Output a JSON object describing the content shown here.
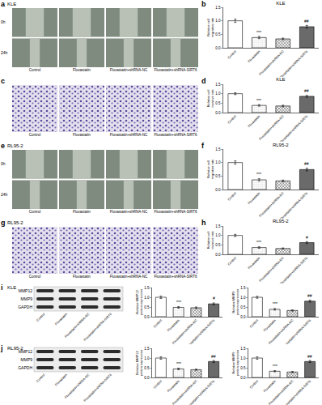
{
  "figure": {
    "panels": [
      {
        "panel_label": "a",
        "cell_line": "KLE",
        "kind": "wound_healing",
        "row_labels": [
          "0h",
          "24h"
        ],
        "column_labels": [
          "Control",
          "Fluvastatin",
          "Fluvastatin+shRNA-NC",
          "Fluvastatin+shRNA-SIRT6"
        ]
      },
      {
        "panel_label": "c",
        "kind": "transwell",
        "column_labels": [
          "Control",
          "Fluvastatin",
          "Fluvastatin+shRNA-NC",
          "Fluvastatin+shRNA-SIRT6"
        ]
      },
      {
        "panel_label": "e",
        "cell_line": "RL95-2",
        "kind": "wound_healing",
        "row_labels": [
          "0h",
          "24h"
        ],
        "column_labels": [
          "Control",
          "Fluvastatin",
          "Fluvastatin+shRNA-NC",
          "Fluvastatin+shRNA-SIRT6"
        ]
      },
      {
        "panel_label": "g",
        "cell_line": "RL95-2",
        "kind": "transwell",
        "column_labels": [
          "Control",
          "Fluvastatin",
          "Fluvastatin+shRNA-NC",
          "Fluvastatin+shRNA-SIRT6"
        ]
      },
      {
        "panel_label": "i",
        "cell_line": "KLE",
        "kind": "western_blot",
        "row_labels": [
          "MMP12",
          "MMP9",
          "GAPDH"
        ],
        "column_labels": [
          "Control",
          "Fluvastatin",
          "Fluvastatin+shRNA-NC",
          "Fluvastatin+shRNA-SIRT6"
        ]
      },
      {
        "panel_label": "j",
        "cell_line": "RL95-2",
        "kind": "western_blot",
        "row_labels": [
          "MMP12",
          "MMP9",
          "GAPDH"
        ],
        "column_labels": [
          "Control",
          "Fluvastatin",
          "Fluvastatin+shRNA-NC",
          "Fluvastatin+shRNA-SIRT6"
        ]
      }
    ]
  },
  "chart_data": [
    {
      "panel_label": "b",
      "type": "bar",
      "title": "KLE",
      "y_label": "Relative cell migration rate",
      "categories": [
        "Control",
        "Fluvastatin",
        "Fluvastatin+shRNA-NC",
        "Fluvastatin+shRNA-SIRT6"
      ],
      "values": [
        1.0,
        0.38,
        0.33,
        0.78
      ],
      "errors": [
        0.06,
        0.04,
        0.03,
        0.05
      ],
      "colors": [
        "#ffffff",
        "#e0e0e0",
        "#3a3a3a",
        "#6a6a6a"
      ],
      "significance": [
        {
          "category": "Fluvastatin",
          "text": "***"
        },
        {
          "category": "Fluvastatin+shRNA-SIRT6",
          "text": "##"
        }
      ],
      "ylim": [
        0,
        1.5
      ],
      "yticks": [
        {
          "value": 0,
          "label": "0.0"
        },
        0.5,
        {
          "value": 1,
          "label": "1.0"
        },
        1.5
      ],
      "grid": false
    },
    {
      "panel_label": "d",
      "type": "bar",
      "title": "KLE",
      "y_label": "Relative cell invasive rate",
      "categories": [
        "Control",
        "Fluvastatin",
        "Fluvastatin+shRNA-NC",
        "Fluvastatin+shRNA-SIRT6"
      ],
      "values": [
        1.0,
        0.38,
        0.35,
        0.86
      ],
      "errors": [
        0.05,
        0.04,
        0.04,
        0.05
      ],
      "colors": [
        "#ffffff",
        "#e0e0e0",
        "#3a3a3a",
        "#6a6a6a"
      ],
      "significance": [
        {
          "category": "Fluvastatin",
          "text": "***"
        },
        {
          "category": "Fluvastatin+shRNA-SIRT6",
          "text": "##"
        }
      ],
      "ylim": [
        0,
        1.5
      ],
      "yticks": [
        {
          "value": 0,
          "label": "0.0"
        },
        0.5,
        {
          "value": 1,
          "label": "1.0"
        },
        1.5
      ],
      "grid": false
    },
    {
      "panel_label": "f",
      "type": "bar",
      "title": "RL95-2",
      "y_label": "Relative cell migration rate",
      "categories": [
        "Control",
        "Fluvastatin",
        "Fluvastatin+shRNA-NC",
        "Fluvastatin+shRNA-SIRT6"
      ],
      "values": [
        1.0,
        0.36,
        0.32,
        0.74
      ],
      "errors": [
        0.06,
        0.04,
        0.03,
        0.05
      ],
      "colors": [
        "#ffffff",
        "#e0e0e0",
        "#3a3a3a",
        "#6a6a6a"
      ],
      "significance": [
        {
          "category": "Fluvastatin",
          "text": "***"
        },
        {
          "category": "Fluvastatin+shRNA-SIRT6",
          "text": "##"
        }
      ],
      "ylim": [
        0,
        1.5
      ],
      "yticks": [
        {
          "value": 0,
          "label": "0.0"
        },
        0.5,
        {
          "value": 1,
          "label": "1.0"
        },
        1.5
      ],
      "grid": false
    },
    {
      "panel_label": "h",
      "type": "bar",
      "title": "RL95-2",
      "y_label": "Relative cell invasive rate",
      "categories": [
        "Control",
        "Fluvastatin",
        "Fluvastatin+shRNA-NC",
        "Fluvastatin+shRNA-SIRT6"
      ],
      "values": [
        1.0,
        0.36,
        0.31,
        0.62
      ],
      "errors": [
        0.06,
        0.04,
        0.03,
        0.05
      ],
      "colors": [
        "#ffffff",
        "#e0e0e0",
        "#3a3a3a",
        "#6a6a6a"
      ],
      "significance": [
        {
          "category": "Fluvastatin",
          "text": "***"
        },
        {
          "category": "Fluvastatin+shRNA-SIRT6",
          "text": "#"
        }
      ],
      "ylim": [
        0,
        1.5
      ],
      "yticks": [
        {
          "value": 0,
          "label": "0.0"
        },
        0.5,
        {
          "value": 1,
          "label": "1.0"
        },
        1.5
      ],
      "grid": false
    },
    {
      "type": "bar",
      "y_label": "Relative MMP12 protein expression",
      "categories": [
        "Control",
        "Fluvastatin",
        "Fluvastatin+shRNA-NC",
        "Fluvastatin+shRNA-SIRT6"
      ],
      "values": [
        1.0,
        0.48,
        0.46,
        0.66
      ],
      "errors": [
        0.06,
        0.04,
        0.04,
        0.05
      ],
      "colors": [
        "#ffffff",
        "#e0e0e0",
        "#3a3a3a",
        "#6a6a6a"
      ],
      "significance": [
        {
          "category": "Fluvastatin",
          "text": "***"
        },
        {
          "category": "Fluvastatin+shRNA-SIRT6",
          "text": "#"
        }
      ],
      "ylim": [
        0,
        1.5
      ],
      "yticks": [
        {
          "value": 0,
          "label": "0.0"
        },
        0.5,
        {
          "value": 1,
          "label": "1.0"
        },
        1.5
      ],
      "grid": false
    },
    {
      "type": "bar",
      "y_label": "Relative MMP9 protein expression",
      "categories": [
        "Control",
        "Fluvastatin",
        "Fluvastatin+shRNA-NC",
        "Fluvastatin+shRNA-SIRT6"
      ],
      "values": [
        1.0,
        0.38,
        0.32,
        0.8
      ],
      "errors": [
        0.05,
        0.04,
        0.03,
        0.05
      ],
      "colors": [
        "#ffffff",
        "#e0e0e0",
        "#3a3a3a",
        "#6a6a6a"
      ],
      "significance": [
        {
          "category": "Fluvastatin",
          "text": "***"
        },
        {
          "category": "Fluvastatin+shRNA-SIRT6",
          "text": "##"
        }
      ],
      "ylim": [
        0,
        1.5
      ],
      "yticks": [
        {
          "value": 0,
          "label": "0.0"
        },
        0.5,
        {
          "value": 1,
          "label": "1.0"
        },
        1.5
      ],
      "grid": false
    },
    {
      "type": "bar",
      "y_label": "Relative MMP12 protein expression",
      "categories": [
        "Control",
        "Fluvastatin",
        "Fluvastatin+shRNA-NC",
        "Fluvastatin+shRNA-SIRT6"
      ],
      "values": [
        1.0,
        0.44,
        0.4,
        0.82
      ],
      "errors": [
        0.06,
        0.04,
        0.03,
        0.05
      ],
      "colors": [
        "#ffffff",
        "#e0e0e0",
        "#3a3a3a",
        "#6a6a6a"
      ],
      "significance": [
        {
          "category": "Fluvastatin",
          "text": "***"
        },
        {
          "category": "Fluvastatin+shRNA-SIRT6",
          "text": "##"
        }
      ],
      "ylim": [
        0,
        1.5
      ],
      "yticks": [
        {
          "value": 0,
          "label": "0.0"
        },
        0.5,
        {
          "value": 1,
          "label": "1.0"
        },
        1.5
      ],
      "grid": false
    },
    {
      "type": "bar",
      "y_label": "Relative MMP9 protein expression",
      "categories": [
        "Control",
        "Fluvastatin",
        "Fluvastatin+shRNA-NC",
        "Fluvastatin+shRNA-SIRT6"
      ],
      "values": [
        1.0,
        0.32,
        0.28,
        0.82
      ],
      "errors": [
        0.06,
        0.03,
        0.03,
        0.05
      ],
      "colors": [
        "#ffffff",
        "#e0e0e0",
        "#3a3a3a",
        "#6a6a6a"
      ],
      "significance": [
        {
          "category": "Fluvastatin",
          "text": "***"
        },
        {
          "category": "Fluvastatin+shRNA-SIRT6",
          "text": "##"
        }
      ],
      "ylim": [
        0,
        1.5
      ],
      "yticks": [
        {
          "value": 0,
          "label": "0.0"
        },
        0.5,
        {
          "value": 1,
          "label": "1.0"
        },
        1.5
      ],
      "grid": false
    }
  ]
}
